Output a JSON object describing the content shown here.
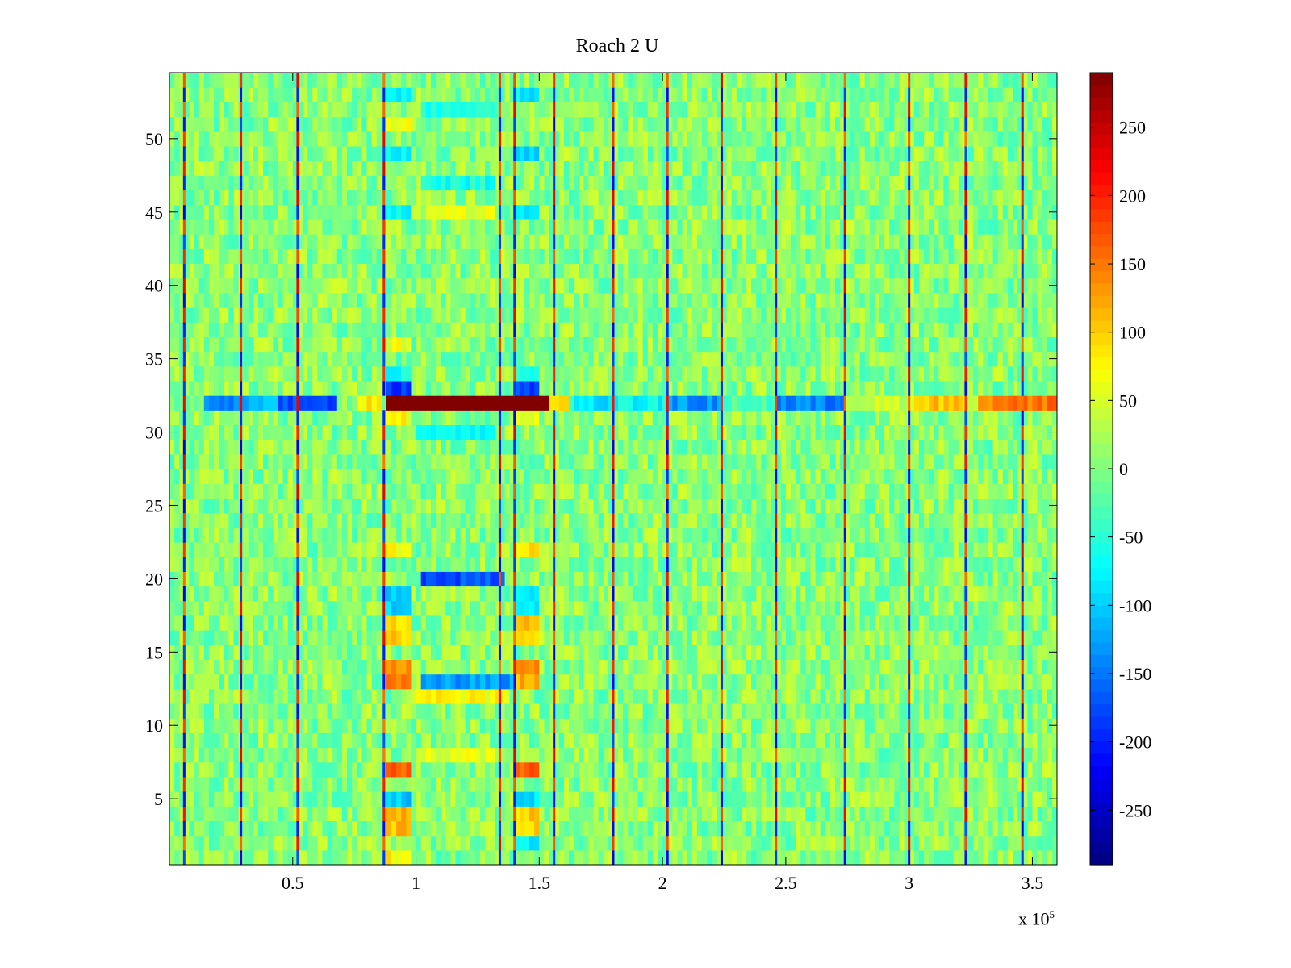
{
  "chart_data": {
    "type": "heatmap",
    "title": "Roach 2 U",
    "xlabel": "",
    "ylabel": "",
    "x_multiplier": "x 10",
    "x_multiplier_exponent": "5",
    "x_range_scaled": [
      0.0,
      3.6
    ],
    "y_range": [
      0.5,
      54.5
    ],
    "rows": 54,
    "x_ticks": [
      {
        "value": 0.5,
        "label": "0.5"
      },
      {
        "value": 1.0,
        "label": "1"
      },
      {
        "value": 1.5,
        "label": "1.5"
      },
      {
        "value": 2.0,
        "label": "2"
      },
      {
        "value": 2.5,
        "label": "2.5"
      },
      {
        "value": 3.0,
        "label": "3"
      },
      {
        "value": 3.5,
        "label": "3.5"
      }
    ],
    "y_ticks": [
      {
        "value": 5,
        "label": "5"
      },
      {
        "value": 10,
        "label": "10"
      },
      {
        "value": 15,
        "label": "15"
      },
      {
        "value": 20,
        "label": "20"
      },
      {
        "value": 25,
        "label": "25"
      },
      {
        "value": 30,
        "label": "30"
      },
      {
        "value": 35,
        "label": "35"
      },
      {
        "value": 40,
        "label": "40"
      },
      {
        "value": 45,
        "label": "45"
      },
      {
        "value": 50,
        "label": "50"
      }
    ],
    "colorbar": {
      "colormap": "jet",
      "range": [
        -290,
        290
      ],
      "ticks": [
        {
          "value": 250,
          "label": "250"
        },
        {
          "value": 200,
          "label": "200"
        },
        {
          "value": 150,
          "label": "150"
        },
        {
          "value": 100,
          "label": "100"
        },
        {
          "value": 50,
          "label": "50"
        },
        {
          "value": 0,
          "label": "0"
        },
        {
          "value": -50,
          "label": "-50"
        },
        {
          "value": -100,
          "label": "-100"
        },
        {
          "value": -150,
          "label": "-150"
        },
        {
          "value": -200,
          "label": "-200"
        },
        {
          "value": -250,
          "label": "-250"
        }
      ]
    },
    "background_value": 5,
    "periodic_columns_x": [
      0.06,
      0.29,
      0.52,
      0.87,
      1.34,
      1.4,
      1.56,
      1.8,
      2.02,
      2.24,
      2.46,
      2.74,
      3.0,
      3.23,
      3.46
    ],
    "features": [
      {
        "row_from": 31.5,
        "row_to": 32.5,
        "x_from": 0.0,
        "x_to": 0.14,
        "value": -10
      },
      {
        "row_from": 31.5,
        "row_to": 32.5,
        "x_from": 0.14,
        "x_to": 0.29,
        "value": -150
      },
      {
        "row_from": 31.5,
        "row_to": 32.5,
        "x_from": 0.29,
        "x_to": 0.45,
        "value": -120
      },
      {
        "row_from": 31.5,
        "row_to": 32.5,
        "x_from": 0.45,
        "x_to": 0.68,
        "value": -175
      },
      {
        "row_from": 31.5,
        "row_to": 32.5,
        "x_from": 0.77,
        "x_to": 0.87,
        "value": 80
      },
      {
        "row_from": 31.5,
        "row_to": 32.5,
        "x_from": 0.88,
        "x_to": 1.54,
        "value": 290
      },
      {
        "row_from": 31.5,
        "row_to": 32.5,
        "x_from": 1.55,
        "x_to": 1.62,
        "value": 110
      },
      {
        "row_from": 31.5,
        "row_to": 32.5,
        "x_from": 1.64,
        "x_to": 1.8,
        "value": -90
      },
      {
        "row_from": 31.5,
        "row_to": 32.5,
        "x_from": 1.8,
        "x_to": 2.02,
        "value": -70
      },
      {
        "row_from": 31.5,
        "row_to": 32.5,
        "x_from": 2.02,
        "x_to": 2.24,
        "value": -135
      },
      {
        "row_from": 31.5,
        "row_to": 32.5,
        "x_from": 2.24,
        "x_to": 2.46,
        "value": -30
      },
      {
        "row_from": 31.5,
        "row_to": 32.5,
        "x_from": 2.46,
        "x_to": 2.74,
        "value": -145
      },
      {
        "row_from": 31.5,
        "row_to": 32.5,
        "x_from": 2.74,
        "x_to": 3.02,
        "value": 40
      },
      {
        "row_from": 31.5,
        "row_to": 32.5,
        "x_from": 3.02,
        "x_to": 3.23,
        "value": 110
      },
      {
        "row_from": 31.5,
        "row_to": 32.5,
        "x_from": 3.23,
        "x_to": 3.29,
        "value": 40
      },
      {
        "row_from": 31.5,
        "row_to": 32.5,
        "x_from": 3.29,
        "x_to": 3.6,
        "value": 150
      },
      {
        "row_from": 32.5,
        "row_to": 33.5,
        "x_from": 0.88,
        "x_to": 0.98,
        "value": -180
      },
      {
        "row_from": 32.5,
        "row_to": 33.5,
        "x_from": 1.41,
        "x_to": 1.5,
        "value": -175
      },
      {
        "row_from": 30.5,
        "row_to": 31.5,
        "x_from": 0.88,
        "x_to": 0.98,
        "value": 70
      },
      {
        "row_from": 30.5,
        "row_to": 31.5,
        "x_from": 1.41,
        "x_to": 1.5,
        "value": 70
      },
      {
        "row_from": 33.5,
        "row_to": 34.5,
        "x_from": 0.88,
        "x_to": 0.98,
        "value": -60
      },
      {
        "row_from": 33.5,
        "row_to": 34.5,
        "x_from": 1.41,
        "x_to": 1.5,
        "value": -60
      },
      {
        "row_from": 29.5,
        "row_to": 30.5,
        "x_from": 1.0,
        "x_to": 1.32,
        "value": -60
      },
      {
        "row_from": 6.5,
        "row_to": 7.5,
        "x_from": 0.88,
        "x_to": 0.99,
        "value": 170
      },
      {
        "row_from": 6.5,
        "row_to": 7.5,
        "x_from": 1.41,
        "x_to": 1.5,
        "value": 160
      },
      {
        "row_from": 7.5,
        "row_to": 8.5,
        "x_from": 1.0,
        "x_to": 1.32,
        "value": 60
      },
      {
        "row_from": 4.5,
        "row_to": 5.5,
        "x_from": 0.88,
        "x_to": 0.99,
        "value": -100
      },
      {
        "row_from": 4.5,
        "row_to": 5.5,
        "x_from": 1.41,
        "x_to": 1.5,
        "value": -90
      },
      {
        "row_from": 2.5,
        "row_to": 4.5,
        "x_from": 0.88,
        "x_to": 0.99,
        "value": 110
      },
      {
        "row_from": 2.5,
        "row_to": 4.5,
        "x_from": 1.41,
        "x_to": 1.5,
        "value": 100
      },
      {
        "row_from": 0.5,
        "row_to": 1.5,
        "x_from": 0.88,
        "x_to": 0.99,
        "value": 80
      },
      {
        "row_from": 1.5,
        "row_to": 2.5,
        "x_from": 1.41,
        "x_to": 1.5,
        "value": -80
      },
      {
        "row_from": 12.5,
        "row_to": 13.5,
        "x_from": 0.88,
        "x_to": 0.99,
        "value": 140
      },
      {
        "row_from": 12.5,
        "row_to": 13.5,
        "x_from": 1.03,
        "x_to": 1.4,
        "value": -130
      },
      {
        "row_from": 12.5,
        "row_to": 13.5,
        "x_from": 1.41,
        "x_to": 1.5,
        "value": 120
      },
      {
        "row_from": 13.5,
        "row_to": 14.5,
        "x_from": 0.88,
        "x_to": 0.99,
        "value": 140
      },
      {
        "row_from": 13.5,
        "row_to": 14.5,
        "x_from": 1.41,
        "x_to": 1.5,
        "value": 130
      },
      {
        "row_from": 11.5,
        "row_to": 12.5,
        "x_from": 1.0,
        "x_to": 1.38,
        "value": 70
      },
      {
        "row_from": 15.5,
        "row_to": 17.5,
        "x_from": 0.88,
        "x_to": 0.99,
        "value": 100
      },
      {
        "row_from": 15.5,
        "row_to": 17.5,
        "x_from": 1.41,
        "x_to": 1.5,
        "value": 100
      },
      {
        "row_from": 17.5,
        "row_to": 19.5,
        "x_from": 0.88,
        "x_to": 0.99,
        "value": -100
      },
      {
        "row_from": 17.5,
        "row_to": 19.5,
        "x_from": 1.41,
        "x_to": 1.5,
        "value": -70
      },
      {
        "row_from": 19.5,
        "row_to": 20.5,
        "x_from": 1.03,
        "x_to": 1.36,
        "value": -170
      },
      {
        "row_from": 21.5,
        "row_to": 22.5,
        "x_from": 0.88,
        "x_to": 0.99,
        "value": 80
      },
      {
        "row_from": 21.5,
        "row_to": 22.5,
        "x_from": 1.41,
        "x_to": 1.5,
        "value": 80
      },
      {
        "row_from": 48.5,
        "row_to": 49.5,
        "x_from": 0.88,
        "x_to": 0.99,
        "value": -80
      },
      {
        "row_from": 48.5,
        "row_to": 49.5,
        "x_from": 1.41,
        "x_to": 1.5,
        "value": -90
      },
      {
        "row_from": 52.5,
        "row_to": 53.5,
        "x_from": 0.88,
        "x_to": 0.99,
        "value": -80
      },
      {
        "row_from": 52.5,
        "row_to": 53.5,
        "x_from": 1.41,
        "x_to": 1.5,
        "value": -80
      },
      {
        "row_from": 51.5,
        "row_to": 52.5,
        "x_from": 1.03,
        "x_to": 1.32,
        "value": -60
      },
      {
        "row_from": 50.5,
        "row_to": 51.5,
        "x_from": 0.88,
        "x_to": 0.99,
        "value": 60
      },
      {
        "row_from": 44.5,
        "row_to": 45.5,
        "x_from": 0.88,
        "x_to": 0.99,
        "value": -70
      },
      {
        "row_from": 44.5,
        "row_to": 45.5,
        "x_from": 1.41,
        "x_to": 1.5,
        "value": -70
      },
      {
        "row_from": 44.5,
        "row_to": 45.5,
        "x_from": 1.05,
        "x_to": 1.32,
        "value": 60
      },
      {
        "row_from": 46.5,
        "row_to": 47.5,
        "x_from": 1.03,
        "x_to": 1.32,
        "value": -60
      },
      {
        "row_from": 35.5,
        "row_to": 36.5,
        "x_from": 0.88,
        "x_to": 0.99,
        "value": 60
      }
    ]
  }
}
